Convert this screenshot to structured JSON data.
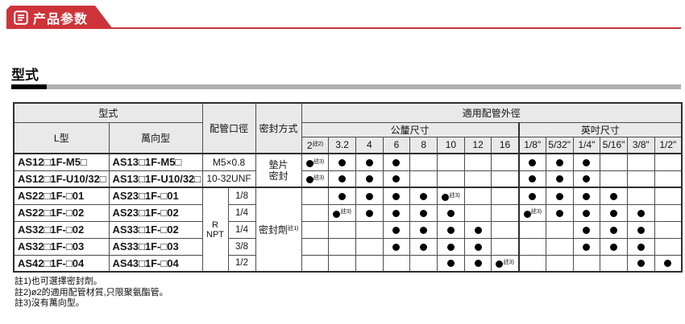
{
  "banner": {
    "title": "产品参数",
    "accent_color": "#cf333a"
  },
  "section_heading": "型式",
  "table": {
    "header": {
      "model_group": "型式",
      "l_type": "L型",
      "universal_type": "萬向型",
      "port_size": "配管口徑",
      "seal_method": "密封方式",
      "tube_od_group": "適用配管外徑",
      "metric_group": "公釐尺寸",
      "inch_group": "英吋尺寸",
      "size_columns": [
        {
          "label": "2",
          "note": "註2)"
        },
        {
          "label": "3.2"
        },
        {
          "label": "4"
        },
        {
          "label": "6"
        },
        {
          "label": "8"
        },
        {
          "label": "10"
        },
        {
          "label": "12"
        },
        {
          "label": "16"
        },
        {
          "label": "1/8\""
        },
        {
          "label": "5/32\""
        },
        {
          "label": "1/4\""
        },
        {
          "label": "5/16\""
        },
        {
          "label": "3/8\""
        },
        {
          "label": "1/2\""
        }
      ]
    },
    "seal": {
      "gasket": "墊片密封",
      "sealant": "密封劑",
      "sealant_note": "註1)"
    },
    "thread_type": "R NPT",
    "dot_note": "註3)",
    "rows": [
      {
        "l_model": "AS12□1F-M5□",
        "universal_model": "AS13□1F-M5□",
        "port": "M5×0.8",
        "dots": [
          2,
          1,
          1,
          1,
          0,
          0,
          0,
          0,
          1,
          1,
          1,
          0,
          0,
          0
        ]
      },
      {
        "l_model": "AS12□1F-U10/32□",
        "universal_model": "AS13□1F-U10/32□",
        "port": "10-32UNF",
        "dots": [
          2,
          1,
          1,
          1,
          0,
          0,
          0,
          0,
          1,
          1,
          1,
          0,
          0,
          0
        ]
      },
      {
        "l_model": "AS22□1F-□01",
        "universal_model": "AS23□1F-□01",
        "thread": "1/8",
        "dots": [
          0,
          1,
          1,
          1,
          1,
          2,
          0,
          0,
          1,
          1,
          1,
          1,
          0,
          0
        ]
      },
      {
        "l_model": "AS22□1F-□02",
        "universal_model": "AS23□1F-□02",
        "thread": "1/4",
        "dots": [
          0,
          2,
          1,
          1,
          1,
          1,
          0,
          0,
          2,
          1,
          1,
          1,
          1,
          0
        ]
      },
      {
        "l_model": "AS32□1F-□02",
        "universal_model": "AS33□1F-□02",
        "thread": "1/4",
        "dots": [
          0,
          0,
          0,
          1,
          1,
          1,
          1,
          0,
          0,
          0,
          1,
          1,
          1,
          0
        ]
      },
      {
        "l_model": "AS32□1F-□03",
        "universal_model": "AS33□1F-□03",
        "thread": "3/8",
        "dots": [
          0,
          0,
          0,
          1,
          1,
          1,
          1,
          0,
          0,
          0,
          1,
          1,
          1,
          0
        ]
      },
      {
        "l_model": "AS42□1F-□04",
        "universal_model": "AS43□1F-□04",
        "thread": "1/2",
        "dots": [
          0,
          0,
          0,
          0,
          0,
          1,
          1,
          2,
          0,
          0,
          0,
          0,
          1,
          1
        ]
      }
    ]
  },
  "notes": [
    "註1)也可選擇密封劑。",
    "註2)ø2的適用配管材質,只限聚氨酯管。",
    "註3)沒有萬向型。"
  ]
}
